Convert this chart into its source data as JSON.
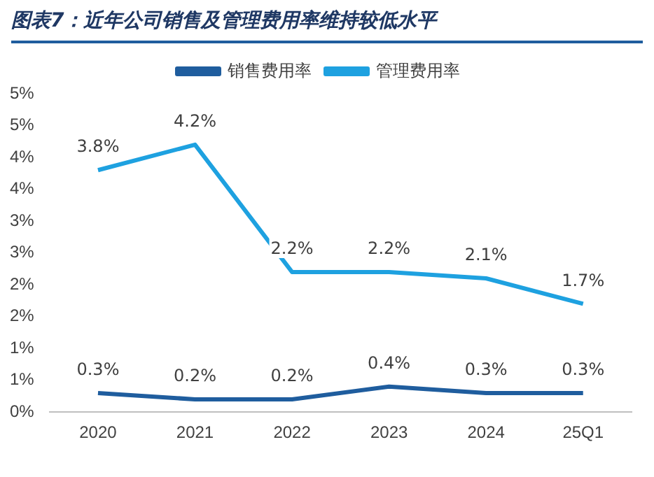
{
  "chart_data": {
    "type": "line",
    "title": "图表7：近年公司销售及管理费用率维持较低水平",
    "categories": [
      "2020",
      "2021",
      "2022",
      "2023",
      "2024",
      "25Q1"
    ],
    "series": [
      {
        "name": "销售费用率",
        "color": "#1f5d9e",
        "values": [
          0.3,
          0.2,
          0.2,
          0.4,
          0.3,
          0.3
        ],
        "value_labels": [
          "0.3%",
          "0.2%",
          "0.2%",
          "0.4%",
          "0.3%",
          "0.3%"
        ]
      },
      {
        "name": "管理费用率",
        "color": "#1ea1e0",
        "values": [
          3.8,
          4.2,
          2.2,
          2.2,
          2.1,
          1.7
        ],
        "value_labels": [
          "3.8%",
          "4.2%",
          "2.2%",
          "2.2%",
          "2.1%",
          "1.7%"
        ]
      }
    ],
    "ylim": [
      0,
      5
    ],
    "yticks": [
      {
        "value": 0,
        "label": "0%"
      },
      {
        "value": 0.5,
        "label": "1%"
      },
      {
        "value": 1,
        "label": "1%"
      },
      {
        "value": 1.5,
        "label": "2%"
      },
      {
        "value": 2,
        "label": "2%"
      },
      {
        "value": 2.5,
        "label": "3%"
      },
      {
        "value": 3,
        "label": "3%"
      },
      {
        "value": 3.5,
        "label": "4%"
      },
      {
        "value": 4,
        "label": "4%"
      },
      {
        "value": 4.5,
        "label": "5%"
      },
      {
        "value": 5,
        "label": "5%"
      }
    ],
    "legend": "top",
    "grid": false,
    "marker": "none",
    "line_style": "solid"
  }
}
